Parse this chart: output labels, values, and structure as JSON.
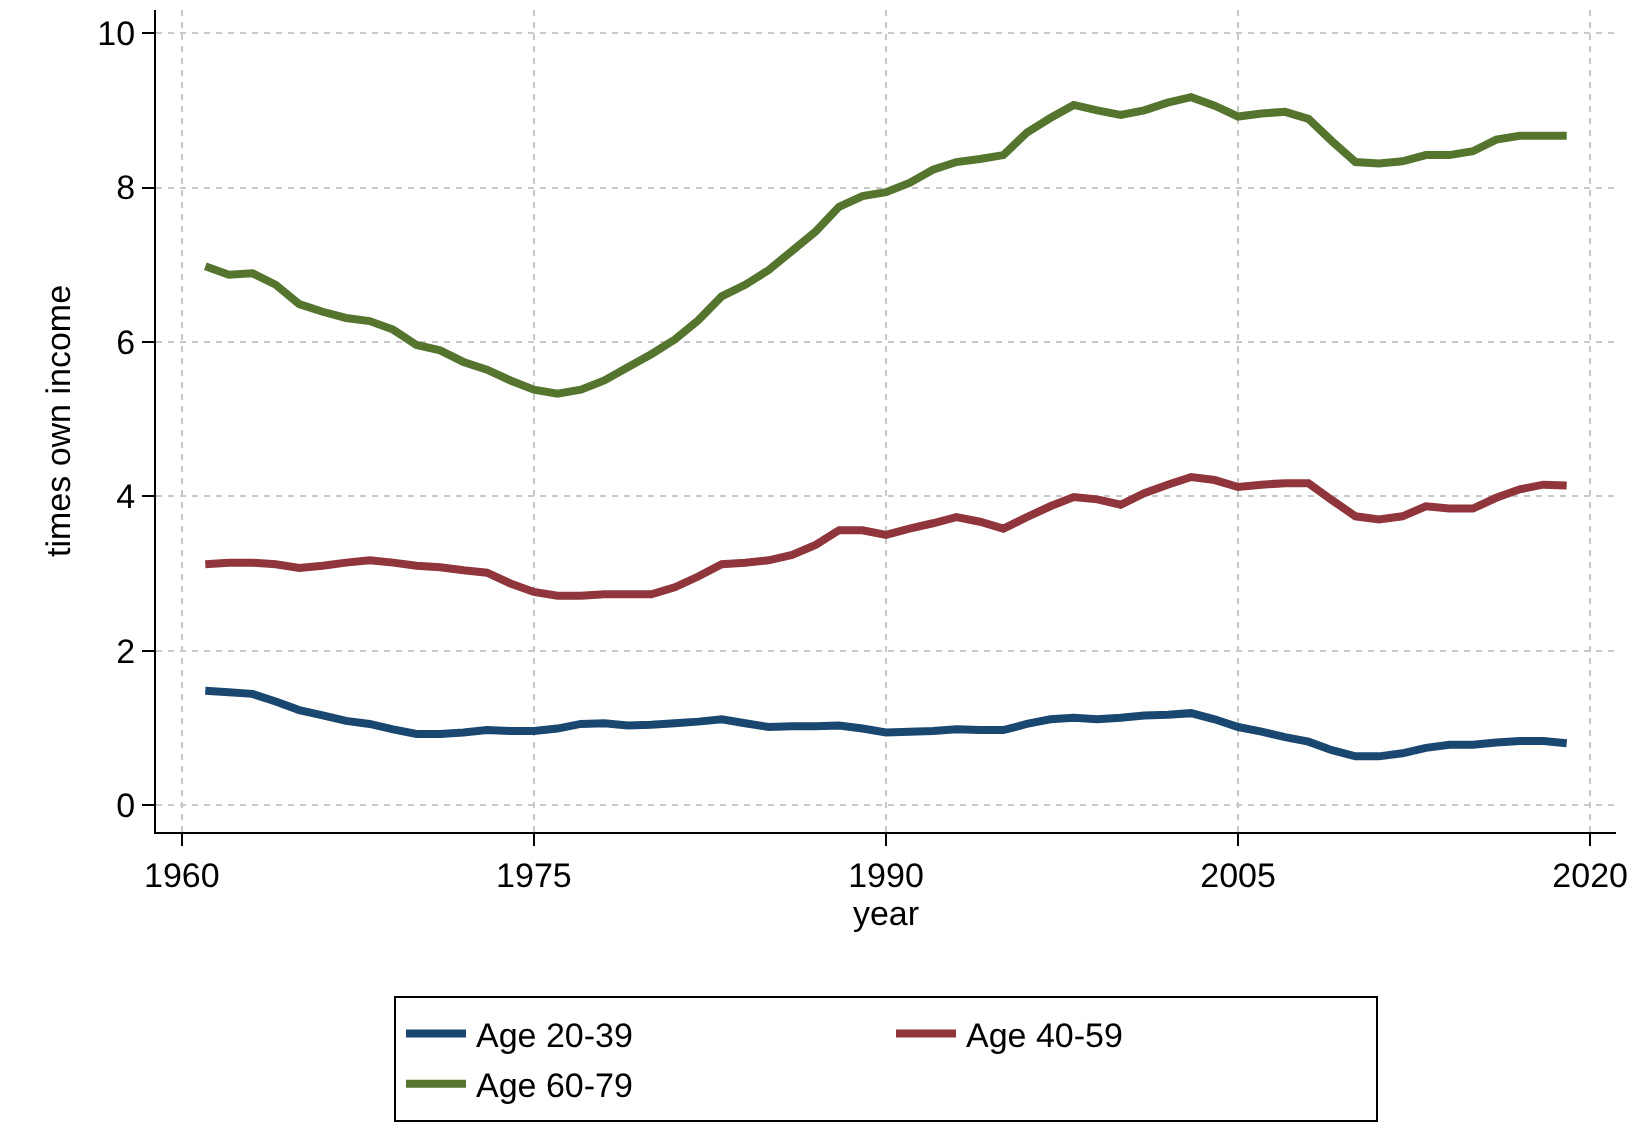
{
  "chart_data": {
    "type": "line",
    "xlabel": "year",
    "ylabel": "times own income",
    "x": [
      1961,
      1962,
      1963,
      1964,
      1965,
      1966,
      1967,
      1968,
      1969,
      1970,
      1971,
      1972,
      1973,
      1974,
      1975,
      1976,
      1977,
      1978,
      1979,
      1980,
      1981,
      1982,
      1983,
      1984,
      1985,
      1986,
      1987,
      1988,
      1989,
      1990,
      1991,
      1992,
      1993,
      1994,
      1995,
      1996,
      1997,
      1998,
      1999,
      2000,
      2001,
      2002,
      2003,
      2004,
      2005,
      2006,
      2007,
      2008,
      2009,
      2010,
      2011,
      2012,
      2013,
      2014,
      2015,
      2016,
      2017,
      2018,
      2019
    ],
    "series": [
      {
        "name": "Age 20-39",
        "color": "#1a476f",
        "values": [
          1.48,
          1.46,
          1.44,
          1.34,
          1.23,
          1.16,
          1.09,
          1.05,
          0.98,
          0.92,
          0.92,
          0.94,
          0.97,
          0.96,
          0.96,
          0.99,
          1.05,
          1.06,
          1.03,
          1.04,
          1.06,
          1.08,
          1.11,
          1.06,
          1.01,
          1.02,
          1.02,
          1.03,
          0.99,
          0.94,
          0.95,
          0.96,
          0.98,
          0.97,
          0.97,
          1.05,
          1.11,
          1.13,
          1.11,
          1.13,
          1.16,
          1.17,
          1.19,
          1.11,
          1.01,
          0.95,
          0.88,
          0.82,
          0.71,
          0.63,
          0.63,
          0.67,
          0.74,
          0.78,
          0.78,
          0.81,
          0.83,
          0.83,
          0.8
        ]
      },
      {
        "name": "Age 40-59",
        "color": "#90353b",
        "values": [
          3.12,
          3.14,
          3.14,
          3.12,
          3.07,
          3.1,
          3.14,
          3.17,
          3.14,
          3.1,
          3.08,
          3.04,
          3.01,
          2.87,
          2.76,
          2.71,
          2.71,
          2.73,
          2.73,
          2.73,
          2.82,
          2.96,
          3.12,
          3.14,
          3.17,
          3.24,
          3.37,
          3.56,
          3.56,
          3.5,
          3.58,
          3.65,
          3.73,
          3.67,
          3.58,
          3.73,
          3.87,
          3.99,
          3.96,
          3.89,
          4.04,
          4.15,
          4.25,
          4.21,
          4.12,
          4.15,
          4.17,
          4.17,
          3.95,
          3.74,
          3.7,
          3.74,
          3.87,
          3.84,
          3.84,
          3.98,
          4.09,
          4.15,
          4.14
        ]
      },
      {
        "name": "Age 60-79",
        "color": "#55752f",
        "values": [
          6.98,
          6.87,
          6.89,
          6.74,
          6.49,
          6.39,
          6.31,
          6.27,
          6.16,
          5.96,
          5.89,
          5.74,
          5.64,
          5.5,
          5.38,
          5.33,
          5.38,
          5.5,
          5.67,
          5.84,
          6.03,
          6.28,
          6.59,
          6.74,
          6.93,
          7.18,
          7.43,
          7.75,
          7.89,
          7.94,
          8.06,
          8.23,
          8.33,
          8.37,
          8.42,
          8.71,
          8.9,
          9.07,
          9,
          8.94,
          9,
          9.1,
          9.17,
          9.06,
          8.92,
          8.96,
          8.98,
          8.89,
          8.6,
          8.33,
          8.31,
          8.34,
          8.42,
          8.42,
          8.47,
          8.62,
          8.67,
          8.67,
          8.67
        ]
      }
    ],
    "xlim": [
      1958.9,
      2021.1
    ],
    "ylim": [
      -0.35,
      10.3
    ],
    "xticks": [
      1960,
      1975,
      1990,
      2005,
      2020
    ],
    "yticks": [
      0,
      2,
      4,
      6,
      8,
      10
    ],
    "grid": true,
    "legend": "bottom",
    "line_style": "solid",
    "marker": "none"
  }
}
